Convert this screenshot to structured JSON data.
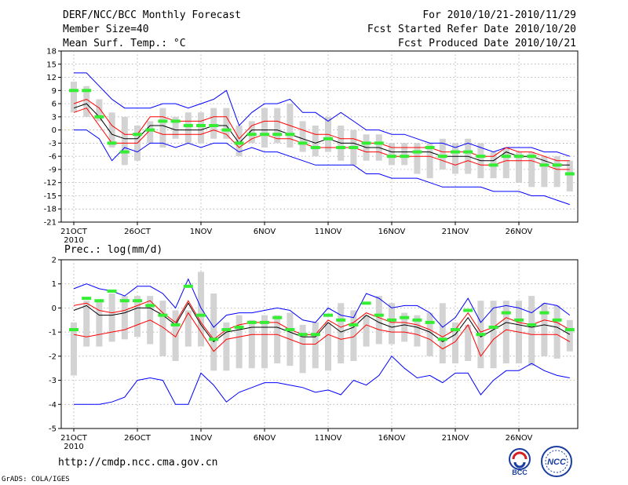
{
  "header": {
    "left1": "DERF/NCC/BCC Monthly Forecast",
    "left2": "Member Size=40",
    "left3": "Mean Surf. Temp.: °C",
    "right1": "For 2010/10/21-2010/11/29",
    "right2": "Fcst Started Refer Date 2010/10/20",
    "right3": "Fcst Produced Date 2010/10/21"
  },
  "precip_label": "Prec.: log(mm/d)",
  "footer_url": "http://cmdp.ncc.cma.gov.cn",
  "grads_credit": "GrADS: COLA/IGES",
  "logos": {
    "bcc": "BCC",
    "ncc": "NCC"
  },
  "colors": {
    "max_min": "#0000ff",
    "spread": "#ff0000",
    "mean": "#000000",
    "box": "#d3d3d3",
    "obs": "#33ee33"
  },
  "chart_data": [
    {
      "type": "line",
      "title": "Mean Surf. Temp.: °C",
      "x_ticks": [
        "21OCT",
        "26OCT",
        "1NOV",
        "6NOV",
        "11NOV",
        "16NOV",
        "21NOV",
        "26NOV"
      ],
      "x_sub": "2010",
      "ylim": [
        -21,
        18
      ],
      "y_ticks": [
        -21,
        -18,
        -15,
        -12,
        -9,
        -6,
        -3,
        0,
        3,
        6,
        9,
        12,
        15,
        18
      ],
      "box_low": [
        4,
        3,
        2,
        -4,
        -8,
        -7,
        -3,
        -4,
        -2,
        -3,
        -3,
        -2,
        -2,
        -6,
        -3,
        -4,
        -3,
        -4,
        -5,
        -6,
        -5,
        -7,
        -8,
        -7,
        -7,
        -8,
        -8,
        -10,
        -11,
        -9,
        -10,
        -10,
        -11,
        -11,
        -11,
        -12,
        -13,
        -13,
        -13,
        -14
      ],
      "box_high": [
        11,
        10,
        7,
        4,
        3,
        1,
        2,
        5,
        3,
        4,
        4,
        5,
        5,
        1,
        2,
        5,
        5,
        6,
        2,
        1,
        3,
        1,
        0,
        -1,
        -1,
        -3,
        -3,
        -3,
        -3,
        -2,
        -3,
        -2,
        -3,
        -5,
        -4,
        -5,
        -5,
        -6,
        -6,
        -7
      ],
      "observed": [
        9,
        9,
        3,
        -3,
        -5,
        -1,
        0,
        2,
        2,
        1,
        1,
        1,
        0,
        -3,
        -1,
        -1,
        -1,
        -1,
        -3,
        -4,
        -2,
        -4,
        -4,
        -3,
        -3,
        -6,
        -6,
        -5,
        -4,
        -6,
        -5,
        -5,
        -6,
        -8,
        -6,
        -6,
        -6,
        -8,
        -8,
        -10
      ],
      "series": [
        {
          "name": "max",
          "values": [
            13,
            13,
            10,
            7,
            5,
            5,
            5,
            6,
            6,
            5,
            6,
            7,
            9,
            1,
            4,
            6,
            6,
            7,
            4,
            4,
            2,
            4,
            2,
            0,
            0,
            -1,
            -1,
            -2,
            -3,
            -3,
            -4,
            -3,
            -4,
            -5,
            -4,
            -4,
            -4,
            -5,
            -5,
            -6
          ]
        },
        {
          "name": "spread_high",
          "values": [
            6,
            7,
            5,
            1,
            -1,
            -1,
            3,
            3,
            2,
            2,
            2,
            3,
            3,
            -2,
            1,
            2,
            2,
            1,
            0,
            -1,
            -1,
            -2,
            -2,
            -3,
            -3,
            -4,
            -4,
            -4,
            -4,
            -5,
            -5,
            -5,
            -6,
            -6,
            -4,
            -5,
            -5,
            -6,
            -7,
            -7
          ]
        },
        {
          "name": "mean",
          "values": [
            5,
            6,
            3,
            -1,
            -2,
            -2,
            1,
            1,
            0,
            0,
            0,
            1,
            1,
            -3,
            0,
            0,
            0,
            -1,
            -2,
            -3,
            -2,
            -3,
            -3,
            -4,
            -4,
            -5,
            -5,
            -5,
            -5,
            -6,
            -6,
            -6,
            -7,
            -7,
            -5,
            -6,
            -6,
            -7,
            -8,
            -8
          ]
        },
        {
          "name": "spread_low",
          "values": [
            4,
            5,
            1,
            -3,
            -3,
            -3,
            0,
            -1,
            -1,
            -1,
            -1,
            0,
            -1,
            -4,
            -2,
            -1,
            -2,
            -2,
            -3,
            -4,
            -4,
            -4,
            -4,
            -5,
            -5,
            -6,
            -6,
            -6,
            -6,
            -7,
            -8,
            -7,
            -8,
            -8,
            -7,
            -7,
            -7,
            -8,
            -9,
            -9
          ]
        },
        {
          "name": "min",
          "values": [
            0,
            0,
            -2,
            -7,
            -4,
            -5,
            -3,
            -3,
            -4,
            -3,
            -4,
            -3,
            -3,
            -5,
            -4,
            -5,
            -5,
            -6,
            -7,
            -8,
            -8,
            -8,
            -8,
            -10,
            -10,
            -11,
            -11,
            -11,
            -12,
            -13,
            -13,
            -13,
            -13,
            -14,
            -14,
            -14,
            -15,
            -15,
            -16,
            -17
          ]
        }
      ]
    },
    {
      "type": "line",
      "title": "Prec.: log(mm/d)",
      "x_ticks": [
        "21OCT",
        "26OCT",
        "1NOV",
        "6NOV",
        "11NOV",
        "16NOV",
        "21NOV",
        "26NOV"
      ],
      "x_sub": "2010",
      "ylim": [
        -5,
        2
      ],
      "y_ticks": [
        -5,
        -4,
        -3,
        -2,
        -1,
        0,
        1,
        2
      ],
      "box_low": [
        -2.8,
        -1.6,
        -1.6,
        -1.4,
        -1.3,
        -1.2,
        -1.5,
        -2.0,
        -2.2,
        -1.6,
        -1.6,
        -2.6,
        -2.6,
        -2.5,
        -2.5,
        -2.5,
        -2.3,
        -2.4,
        -2.7,
        -2.5,
        -2.6,
        -2.3,
        -2.2,
        -1.6,
        -1.5,
        -1.5,
        -1.4,
        -1.6,
        -2.0,
        -2.3,
        -2.3,
        -2.2,
        -2.5,
        -2.5,
        -2.3,
        -2.3,
        -2.4,
        -2.0,
        -2.1,
        -1.8
      ],
      "box_high": [
        -0.6,
        0.3,
        0.3,
        0.6,
        0.5,
        0.5,
        0.5,
        0.3,
        -0.1,
        -0.1,
        1.5,
        0.6,
        -0.6,
        -0.3,
        -0.5,
        -0.3,
        -0.3,
        -0.2,
        -0.7,
        -0.6,
        -0.6,
        0.2,
        -0.1,
        -0.3,
        0.5,
        0.2,
        -0.2,
        -0.3,
        -0.2,
        0.2,
        -0.6,
        -0.7,
        0.3,
        0.3,
        0.3,
        0.3,
        0.5,
        0.2,
        0.1,
        -0.5
      ],
      "observed": [
        -0.9,
        0.4,
        0.3,
        0.7,
        0.3,
        0.3,
        0.1,
        -0.3,
        -0.7,
        0.9,
        -0.3,
        -1.3,
        -0.9,
        -0.8,
        -0.6,
        -0.6,
        -0.4,
        -0.9,
        -1.1,
        -1.1,
        -0.3,
        -0.5,
        -0.7,
        0.2,
        -0.3,
        -0.5,
        -0.4,
        -0.5,
        -0.6,
        -1.3,
        -0.9,
        -0.1,
        -1.1,
        -0.8,
        -0.2,
        -0.5,
        -0.7,
        -0.2,
        -0.5,
        -0.9
      ],
      "series": [
        {
          "name": "max",
          "values": [
            0.8,
            1.0,
            0.8,
            0.7,
            0.5,
            0.9,
            0.9,
            0.6,
            0.0,
            1.2,
            0.0,
            -0.8,
            -0.3,
            -0.2,
            -0.2,
            -0.1,
            0.0,
            -0.1,
            -0.5,
            -0.6,
            0.0,
            -0.3,
            -0.4,
            0.6,
            0.4,
            0.0,
            0.1,
            0.1,
            -0.2,
            -0.8,
            -0.4,
            0.4,
            -0.6,
            0.0,
            0.1,
            0.0,
            -0.2,
            0.2,
            0.1,
            -0.3
          ]
        },
        {
          "name": "spread_high",
          "values": [
            0.1,
            0.2,
            -0.1,
            -0.2,
            -0.1,
            0.1,
            0.3,
            -0.2,
            -0.6,
            0.3,
            -0.6,
            -1.3,
            -0.9,
            -0.7,
            -0.6,
            -0.6,
            -0.6,
            -0.9,
            -1.1,
            -1.1,
            -0.5,
            -0.8,
            -0.6,
            -0.2,
            -0.4,
            -0.6,
            -0.6,
            -0.7,
            -0.9,
            -1.2,
            -0.9,
            -0.2,
            -1.0,
            -0.8,
            -0.4,
            -0.6,
            -0.7,
            -0.5,
            -0.6,
            -0.9
          ]
        },
        {
          "name": "mean",
          "values": [
            -0.1,
            0.1,
            -0.3,
            -0.3,
            -0.2,
            0.0,
            0.0,
            -0.3,
            -0.7,
            0.2,
            -0.7,
            -1.4,
            -1.0,
            -0.9,
            -0.8,
            -0.8,
            -0.8,
            -1.0,
            -1.2,
            -1.2,
            -0.6,
            -1.0,
            -0.8,
            -0.3,
            -0.6,
            -0.8,
            -0.7,
            -0.8,
            -1.0,
            -1.4,
            -1.1,
            -0.4,
            -1.2,
            -0.9,
            -0.6,
            -0.7,
            -0.8,
            -0.7,
            -0.8,
            -1.1
          ]
        },
        {
          "name": "spread_low",
          "values": [
            -1.1,
            -1.2,
            -1.1,
            -1.0,
            -0.9,
            -0.7,
            -0.5,
            -0.8,
            -1.2,
            -0.2,
            -1.0,
            -1.8,
            -1.3,
            -1.2,
            -1.1,
            -1.1,
            -1.1,
            -1.3,
            -1.5,
            -1.5,
            -1.1,
            -1.3,
            -1.2,
            -0.7,
            -0.9,
            -1.0,
            -1.0,
            -1.1,
            -1.3,
            -1.7,
            -1.4,
            -0.7,
            -2.0,
            -1.3,
            -0.9,
            -1.0,
            -1.1,
            -1.1,
            -1.1,
            -1.4
          ]
        },
        {
          "name": "min",
          "values": [
            -4.0,
            -4.0,
            -4.0,
            -3.9,
            -3.7,
            -3.0,
            -2.9,
            -3.0,
            -4.0,
            -4.0,
            -2.7,
            -3.2,
            -3.9,
            -3.5,
            -3.3,
            -3.1,
            -3.1,
            -3.2,
            -3.3,
            -3.5,
            -3.4,
            -3.6,
            -3.0,
            -3.2,
            -2.8,
            -2.0,
            -2.5,
            -2.9,
            -2.8,
            -3.1,
            -2.7,
            -2.7,
            -3.6,
            -3.0,
            -2.6,
            -2.6,
            -2.3,
            -2.6,
            -2.8,
            -2.9
          ]
        }
      ]
    }
  ]
}
